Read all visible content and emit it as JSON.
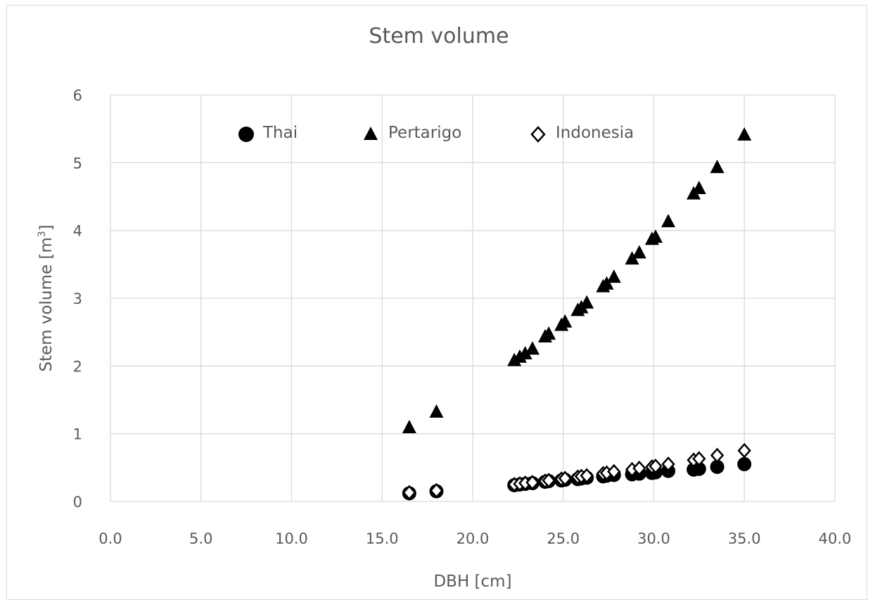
{
  "chart_data": {
    "type": "scatter",
    "title": "Stem volume",
    "xlabel": "DBH [cm]",
    "ylabel_main": "Stem volume [m",
    "ylabel_sup": "3",
    "ylabel_end": "]",
    "xlim": [
      0,
      40
    ],
    "ylim": [
      0,
      6
    ],
    "x_ticks": [
      "0.0",
      "5.0",
      "10.0",
      "15.0",
      "20.0",
      "25.0",
      "30.0",
      "35.0",
      "40.0"
    ],
    "y_ticks": [
      "0",
      "1",
      "2",
      "3",
      "4",
      "5",
      "6"
    ],
    "grid": true,
    "legend_position": "top-inside",
    "series": [
      {
        "name": "Thai",
        "marker": "circle-filled",
        "color": "#000000",
        "points": [
          [
            16.5,
            0.12
          ],
          [
            18.0,
            0.15
          ],
          [
            22.3,
            0.24
          ],
          [
            22.6,
            0.25
          ],
          [
            22.9,
            0.26
          ],
          [
            23.3,
            0.27
          ],
          [
            24.0,
            0.29
          ],
          [
            24.2,
            0.3
          ],
          [
            24.9,
            0.31
          ],
          [
            25.1,
            0.32
          ],
          [
            25.8,
            0.33
          ],
          [
            26.0,
            0.34
          ],
          [
            26.3,
            0.35
          ],
          [
            27.2,
            0.37
          ],
          [
            27.4,
            0.38
          ],
          [
            27.8,
            0.39
          ],
          [
            28.8,
            0.4
          ],
          [
            29.2,
            0.41
          ],
          [
            29.9,
            0.42
          ],
          [
            30.1,
            0.43
          ],
          [
            30.8,
            0.45
          ],
          [
            32.2,
            0.47
          ],
          [
            32.5,
            0.48
          ],
          [
            33.5,
            0.51
          ],
          [
            35.0,
            0.55
          ]
        ]
      },
      {
        "name": "Pertarigo",
        "marker": "triangle-filled",
        "color": "#000000",
        "points": [
          [
            16.5,
            1.09
          ],
          [
            18.0,
            1.32
          ],
          [
            22.3,
            2.08
          ],
          [
            22.6,
            2.13
          ],
          [
            22.9,
            2.18
          ],
          [
            23.3,
            2.25
          ],
          [
            24.0,
            2.43
          ],
          [
            24.2,
            2.47
          ],
          [
            24.9,
            2.6
          ],
          [
            25.1,
            2.65
          ],
          [
            25.8,
            2.82
          ],
          [
            26.0,
            2.86
          ],
          [
            26.3,
            2.93
          ],
          [
            27.2,
            3.17
          ],
          [
            27.4,
            3.21
          ],
          [
            27.8,
            3.31
          ],
          [
            28.8,
            3.58
          ],
          [
            29.2,
            3.67
          ],
          [
            29.9,
            3.87
          ],
          [
            30.1,
            3.9
          ],
          [
            30.8,
            4.13
          ],
          [
            32.2,
            4.54
          ],
          [
            32.5,
            4.62
          ],
          [
            33.5,
            4.93
          ],
          [
            35.0,
            5.41
          ]
        ]
      },
      {
        "name": "Indonesia",
        "marker": "diamond-open",
        "color": "#000000",
        "points": [
          [
            16.5,
            0.13
          ],
          [
            18.0,
            0.16
          ],
          [
            22.3,
            0.25
          ],
          [
            22.6,
            0.26
          ],
          [
            22.9,
            0.27
          ],
          [
            23.3,
            0.28
          ],
          [
            24.0,
            0.3
          ],
          [
            24.2,
            0.31
          ],
          [
            24.9,
            0.33
          ],
          [
            25.1,
            0.34
          ],
          [
            25.8,
            0.36
          ],
          [
            26.0,
            0.37
          ],
          [
            26.3,
            0.38
          ],
          [
            27.2,
            0.41
          ],
          [
            27.4,
            0.42
          ],
          [
            27.8,
            0.44
          ],
          [
            28.8,
            0.47
          ],
          [
            29.2,
            0.49
          ],
          [
            29.9,
            0.51
          ],
          [
            30.1,
            0.52
          ],
          [
            30.8,
            0.55
          ],
          [
            32.2,
            0.61
          ],
          [
            32.5,
            0.63
          ],
          [
            33.5,
            0.68
          ],
          [
            35.0,
            0.75
          ]
        ]
      }
    ]
  }
}
